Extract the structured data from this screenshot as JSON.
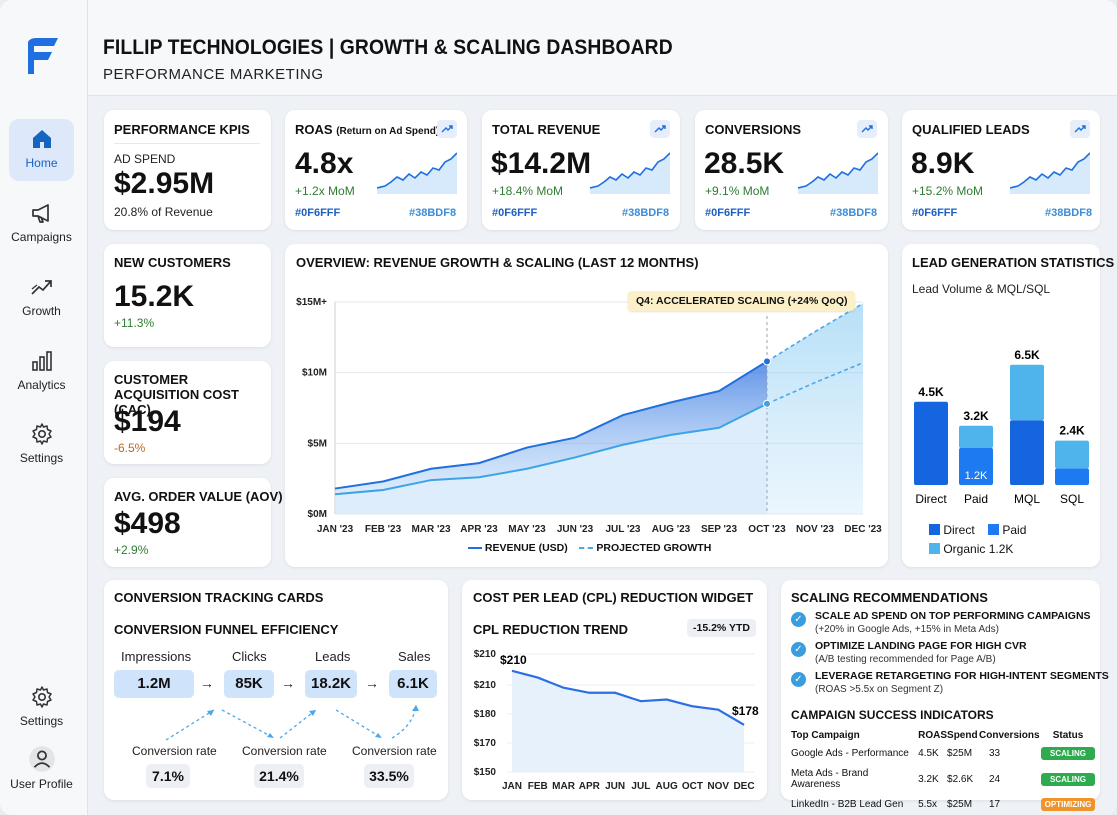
{
  "sidebar": {
    "items": [
      {
        "label": "Home",
        "icon": "home-icon"
      },
      {
        "label": "Campaigns",
        "icon": "megaphone-icon"
      },
      {
        "label": "Growth",
        "icon": "trend-up-icon"
      },
      {
        "label": "Analytics",
        "icon": "bar-chart-icon"
      },
      {
        "label": "Settings",
        "icon": "gear-icon"
      }
    ],
    "bottom_settings": "Settings",
    "profile": "User Profile",
    "accent": "#1565c0"
  },
  "header": {
    "title": "FILLIP TECHNOLOGIES | GROWTH & SCALING DASHBOARD",
    "subtitle": "PERFORMANCE MARKETING"
  },
  "kpi": {
    "title": "PERFORMANCE KPIS",
    "label": "AD SPEND",
    "value": "$2.95M",
    "note": "20.8% of Revenue"
  },
  "metrics": [
    {
      "title": "ROAS",
      "title_small": "(Return on Ad Spend)",
      "value": "4.8x",
      "change": "+1.2x MoM",
      "hex_left": "#0F6FFF",
      "hex_right": "#38BDF8"
    },
    {
      "title": "TOTAL REVENUE",
      "title_small": "",
      "value": "$14.2M",
      "change": "+18.4% MoM",
      "hex_left": "#0F6FFF",
      "hex_right": "#38BDF8"
    },
    {
      "title": "CONVERSIONS",
      "title_small": "",
      "value": "28.5K",
      "change": "+9.1% MoM",
      "hex_left": "#0F6FFF",
      "hex_right": "#38BDF8"
    },
    {
      "title": "QUALIFIED LEADS",
      "title_small": "",
      "value": "8.9K",
      "change": "+15.2% MoM",
      "hex_left": "#0F6FFF",
      "hex_right": "#38BDF8"
    }
  ],
  "new_customers": {
    "title": "NEW CUSTOMERS",
    "value": "15.2K",
    "change": "+11.3%"
  },
  "cac": {
    "title": "CUSTOMER ACQUISITION COST (CAC)",
    "value": "$194",
    "change": "-6.5%"
  },
  "aov": {
    "title": "AVG. ORDER VALUE (AOV)",
    "value": "$498",
    "change": "+2.9%"
  },
  "overview": {
    "title": "OVERVIEW: REVENUE GROWTH & SCALING (LAST 12 MONTHS)",
    "annotation": "Q4: ACCELERATED SCALING (+24% QoQ)",
    "legend_revenue": "REVENUE (USD)",
    "legend_projected": "PROJECTED GROWTH"
  },
  "leads": {
    "title": "LEAD GENERATION STATISTICS",
    "subtitle": "Lead Volume & MQL/SQL",
    "legend_direct": "Direct",
    "legend_paid": "Paid",
    "legend_organic": "Organic 1.2K"
  },
  "conversion": {
    "title": "CONVERSION TRACKING CARDS",
    "subtitle": "CONVERSION FUNNEL EFFICIENCY",
    "stages": [
      {
        "label": "Impressions",
        "value": "1.2M"
      },
      {
        "label": "Clicks",
        "value": "85K"
      },
      {
        "label": "Leads",
        "value": "18.2K"
      },
      {
        "label": "Sales",
        "value": "6.1K"
      }
    ],
    "rates": [
      {
        "label": "Conversion rate",
        "value": "7.1%"
      },
      {
        "label": "Conversion rate",
        "value": "21.4%"
      },
      {
        "label": "Conversion rate",
        "value": "33.5%"
      }
    ]
  },
  "cpl": {
    "title": "COST PER LEAD (CPL) REDUCTION WIDGET",
    "subtitle": "CPL REDUCTION TREND",
    "badge": "-15.2% YTD",
    "start_label": "$210",
    "end_label": "$178"
  },
  "recommendations": {
    "title": "SCALING RECOMMENDATIONS",
    "items": [
      {
        "head": "SCALE AD SPEND ON TOP PERFORMING CAMPAIGNS",
        "sub": "(+20% in Google Ads, +15% in Meta Ads)"
      },
      {
        "head": "OPTIMIZE LANDING PAGE FOR HIGH CVR",
        "sub": "(A/B testing recommended for Page A/B)"
      },
      {
        "head": "LEVERAGE RETARGETING FOR HIGH-INTENT SEGMENTS",
        "sub": "(ROAS >5.5x on Segment Z)"
      }
    ],
    "indicators_title": "CAMPAIGN SUCCESS INDICATORS",
    "headers": [
      "Top Campaign",
      "ROAS",
      "Spend",
      "Conversions",
      "Status"
    ],
    "rows": [
      {
        "name": "Google Ads - Performance",
        "roas": "4.5K",
        "spend": "$25M",
        "conv": "33",
        "status": "SCALING",
        "color": "#2eaa4f"
      },
      {
        "name": "Meta Ads - Brand Awareness",
        "roas": "3.2K",
        "spend": "$2.6K",
        "conv": "24",
        "status": "SCALING",
        "color": "#2eaa4f"
      },
      {
        "name": "LinkedIn - B2B Lead Gen",
        "roas": "5.5x",
        "spend": "$25M",
        "conv": "17",
        "status": "OPTIMIZING",
        "color": "#f0932b"
      }
    ]
  },
  "chart_data": [
    {
      "type": "area",
      "title": "OVERVIEW: REVENUE GROWTH & SCALING (LAST 12 MONTHS)",
      "categories": [
        "JAN '23",
        "FEB '23",
        "MAR '23",
        "APR '23",
        "MAY '23",
        "JUN '23",
        "JUL '23",
        "AUG '23",
        "SEP '23",
        "OCT '23",
        "NOV '23",
        "DEC '23"
      ],
      "y_ticks": [
        "$0M",
        "$5M",
        "$10M",
        "$15M+"
      ],
      "ylim": [
        0,
        15
      ],
      "series": [
        {
          "name": "REVENUE (USD)",
          "values": [
            1.8,
            2.3,
            3.2,
            3.6,
            4.7,
            5.4,
            7.0,
            7.9,
            8.7,
            10.8,
            null,
            null
          ]
        },
        {
          "name": "PROJECTED GROWTH",
          "values": [
            null,
            null,
            null,
            null,
            null,
            null,
            null,
            null,
            null,
            10.8,
            12.9,
            14.9
          ]
        },
        {
          "name": "lower",
          "values": [
            1.4,
            1.7,
            2.4,
            2.6,
            3.2,
            4.0,
            4.9,
            5.6,
            6.1,
            7.8,
            null,
            null
          ]
        },
        {
          "name": "lower-projected",
          "values": [
            null,
            null,
            null,
            null,
            null,
            null,
            null,
            null,
            null,
            7.8,
            9.3,
            10.7
          ]
        }
      ],
      "colors": {
        "revenue": "#1f6fe0",
        "projected": "#4aa8e8"
      }
    },
    {
      "type": "bar",
      "title": "LEAD GENERATION STATISTICS",
      "categories": [
        "Direct",
        "Paid",
        "MQL",
        "SQL"
      ],
      "totals": [
        "4.5K",
        "3.2K",
        "6.5K",
        "2.4K"
      ],
      "series": [
        {
          "name": "Direct",
          "values": [
            4.5,
            0,
            3.5,
            0
          ]
        },
        {
          "name": "Paid",
          "values": [
            0,
            2.0,
            0,
            0.9
          ]
        },
        {
          "name": "Organic",
          "values": [
            0,
            1.2,
            3.0,
            1.5
          ]
        }
      ],
      "segment_labels": {
        "Paid": "1.2K"
      },
      "colors": {
        "Direct": "#1565e0",
        "Paid": "#1e7af0",
        "Organic": "#4fb3ec"
      }
    },
    {
      "type": "line",
      "title": "CPL REDUCTION TREND",
      "categories": [
        "JAN",
        "FEB",
        "MAR",
        "APR",
        "JUN",
        "JUL",
        "AUG",
        "OCT",
        "NOV",
        "DEC"
      ],
      "y_ticks": [
        "$150",
        "$170",
        "$180",
        "$210",
        "$210"
      ],
      "values": [
        210,
        206,
        200,
        197,
        197,
        192,
        193,
        189,
        187,
        178
      ],
      "ylim": [
        150,
        220
      ]
    }
  ]
}
